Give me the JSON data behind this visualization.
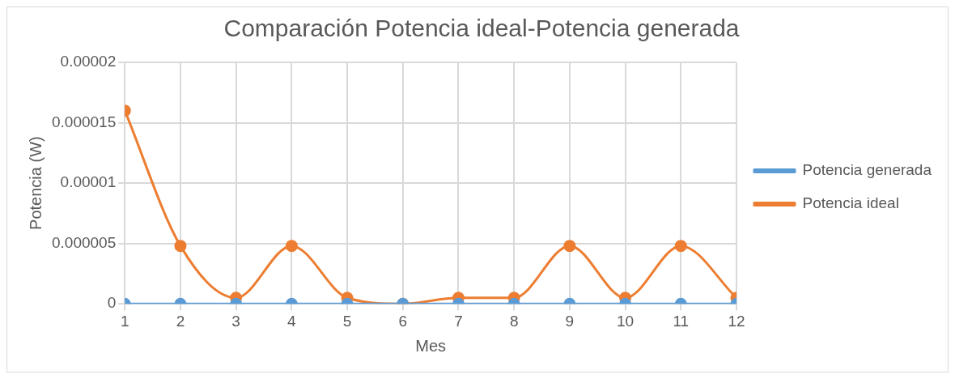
{
  "chart_data": {
    "type": "line",
    "title": "Comparación Potencia ideal-Potencia generada",
    "xlabel": "Mes",
    "ylabel": "Potencia (W)",
    "x": [
      1,
      2,
      3,
      4,
      5,
      6,
      7,
      8,
      9,
      10,
      11,
      12
    ],
    "xlim": [
      1,
      12
    ],
    "xticks": [
      1,
      2,
      3,
      4,
      5,
      6,
      7,
      8,
      9,
      10,
      11,
      12
    ],
    "series": [
      {
        "name": "Potencia generada",
        "color": "#5b9bd5",
        "values": [
          0,
          0,
          0,
          0,
          0,
          0,
          0,
          0,
          0,
          0,
          0,
          0
        ]
      },
      {
        "name": "Potencia ideal",
        "color": "#ed7d31",
        "values": [
          1.6e-05,
          4.8e-06,
          5e-07,
          4.8e-06,
          5e-07,
          0,
          5e-07,
          5e-07,
          4.8e-06,
          5e-07,
          4.8e-06,
          5e-07
        ]
      }
    ],
    "ylim": [
      0,
      2e-05
    ],
    "yticks": [
      0,
      {
        "value": 5e-06,
        "label": "0.000005"
      },
      {
        "value": 1e-05,
        "label": "0.00001"
      },
      {
        "value": 1.5e-05,
        "label": "0.000015"
      },
      {
        "value": 2e-05,
        "label": "0.00002"
      }
    ],
    "grid": true,
    "legend": "right",
    "marker": "circle",
    "line_style": "solid"
  }
}
